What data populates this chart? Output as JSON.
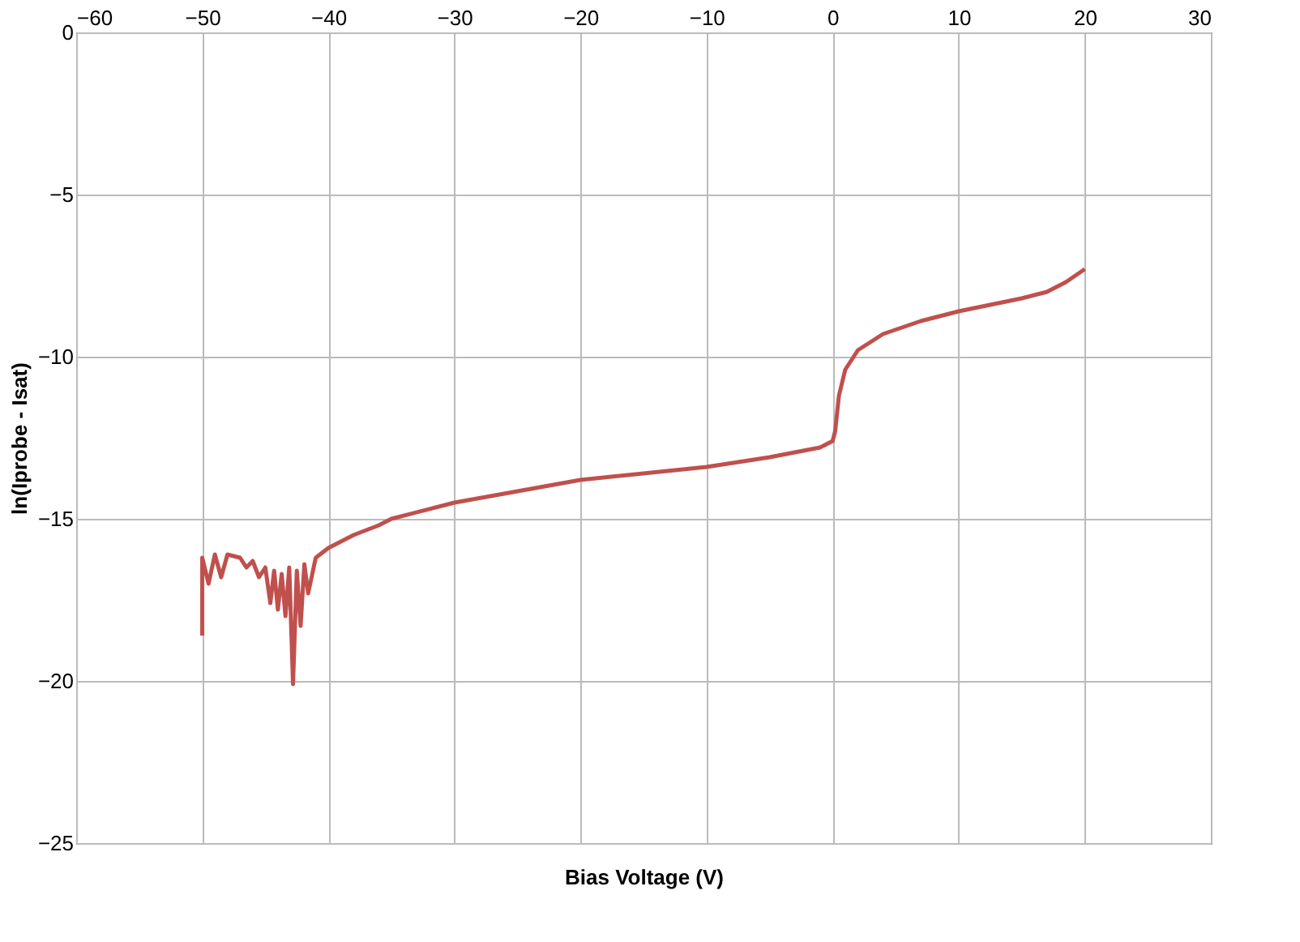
{
  "chart_data": {
    "type": "line",
    "xlabel": "Bias Voltage (V)",
    "ylabel": "ln(Iprobe - Isat)",
    "xlim": [
      -60,
      30
    ],
    "xticks": [
      -60,
      -50,
      -40,
      -30,
      -20,
      -10,
      0,
      10,
      20,
      30
    ],
    "ylim": [
      -25,
      0
    ],
    "yticks": [
      -25,
      -20,
      -15,
      -10,
      -5,
      0
    ],
    "grid": true,
    "marker": "none",
    "line_style": "solid",
    "series": [
      {
        "color": "#c0504d",
        "x": [
          -50,
          -50,
          -49.5,
          -49,
          -48.5,
          -48,
          -47,
          -46.5,
          -46,
          -45.5,
          -45,
          -44.6,
          -44.3,
          -44,
          -43.7,
          -43.4,
          -43.1,
          -42.8,
          -42.5,
          -42.2,
          -41.9,
          -41.6,
          -41,
          -40,
          -38,
          -36,
          -35,
          -30,
          -20,
          -10,
          -5,
          -1,
          0,
          0.2,
          0.5,
          1,
          2,
          4,
          7,
          10,
          15,
          17,
          18.5,
          20
        ],
        "values": [
          -18.6,
          -16.2,
          -17.0,
          -16.1,
          -16.8,
          -16.1,
          -16.2,
          -16.5,
          -16.3,
          -16.8,
          -16.5,
          -17.6,
          -16.6,
          -17.8,
          -16.7,
          -18.0,
          -16.5,
          -20.1,
          -16.6,
          -18.3,
          -16.4,
          -17.3,
          -16.2,
          -15.9,
          -15.5,
          -15.2,
          -15.0,
          -14.5,
          -13.8,
          -13.4,
          -13.1,
          -12.8,
          -12.6,
          -12.3,
          -11.2,
          -10.4,
          -9.8,
          -9.3,
          -8.9,
          -8.6,
          -8.2,
          -8.0,
          -7.7,
          -7.3
        ]
      }
    ]
  }
}
